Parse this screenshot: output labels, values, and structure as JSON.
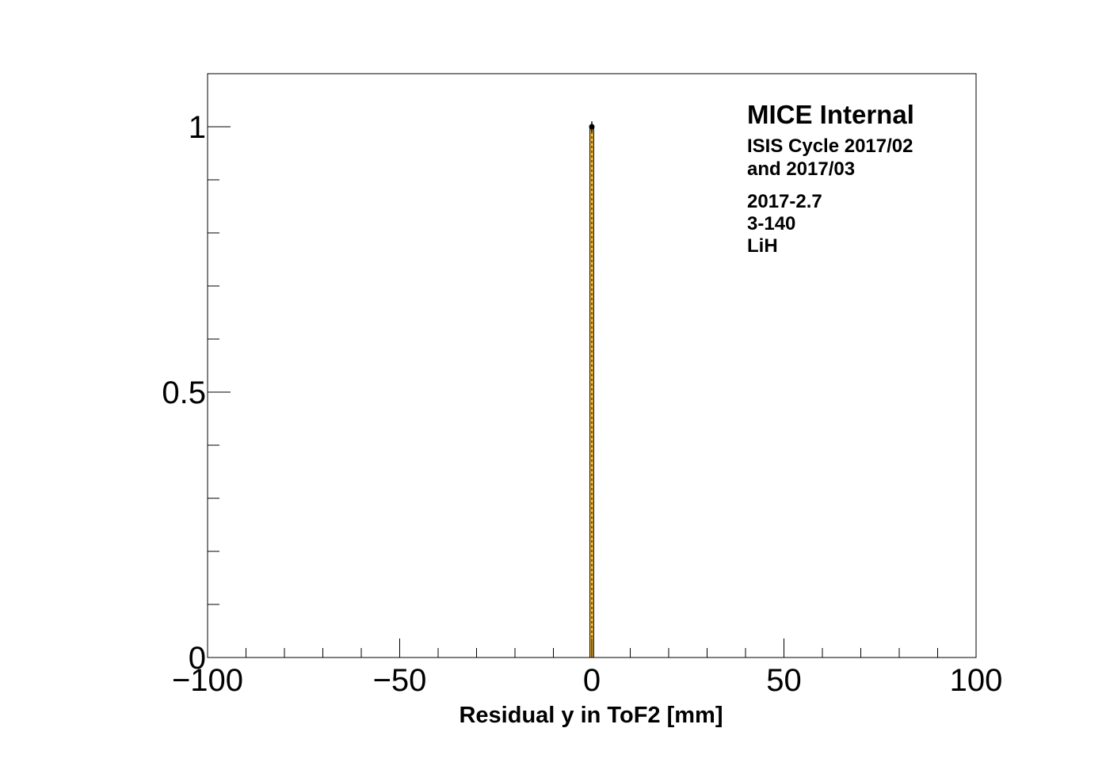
{
  "chart_data": {
    "type": "bar",
    "title": "",
    "xlabel": "Residual y in ToF2 [mm]",
    "ylabel": "",
    "xlim": [
      -100,
      100
    ],
    "ylim": [
      0,
      1.1
    ],
    "x_major_ticks": [
      -100,
      -50,
      0,
      50,
      100
    ],
    "x_tick_labels": [
      "−100",
      "−50",
      "0",
      "50",
      "100"
    ],
    "y_major_ticks": [
      0,
      0.5,
      1
    ],
    "y_tick_labels": [
      "0",
      "0.5",
      "1"
    ],
    "grid": false,
    "legend": "none",
    "bins": [
      {
        "x_low": -0.5,
        "x_high": 0.5,
        "mc_value": 1.0,
        "data_value": 1.0,
        "data_error": 0.01
      }
    ],
    "annotations": [
      "MICE Internal",
      "ISIS Cycle 2017/02",
      "and 2017/03",
      "2017-2.7",
      "3-140",
      "LiH"
    ],
    "colors": {
      "mc_fill": "#f5b935",
      "mc_line": "#000000",
      "data_marker": "#000000",
      "frame": "#000000"
    }
  }
}
